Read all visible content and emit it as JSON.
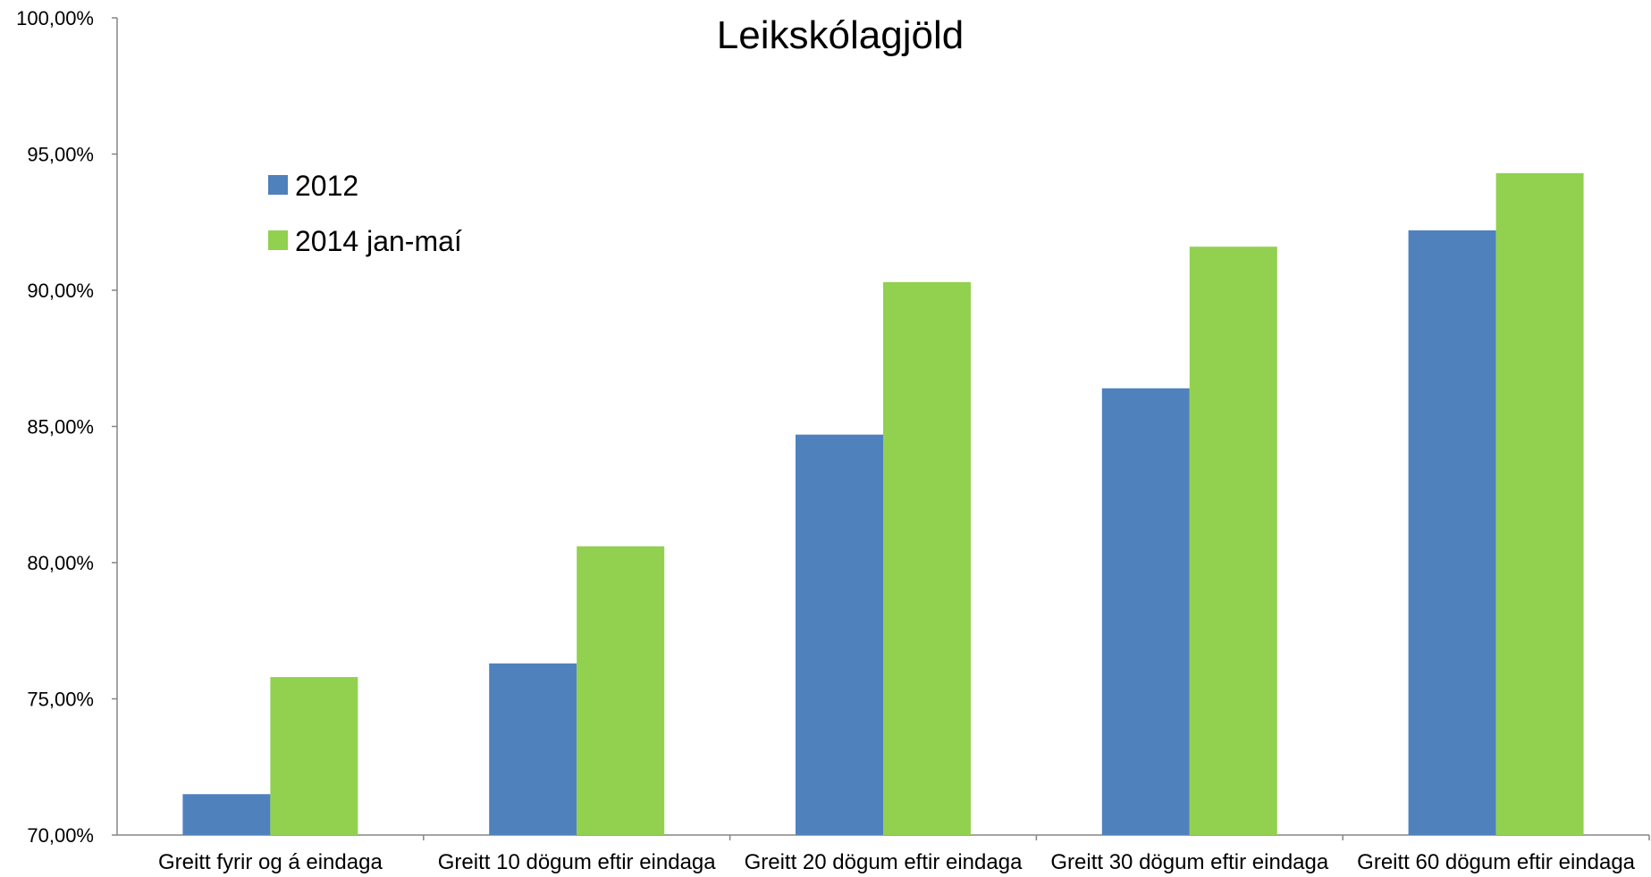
{
  "chart_data": {
    "type": "bar",
    "title": "Leikskólagjöld",
    "xlabel": "",
    "ylabel": "",
    "categories": [
      "Greitt fyrir og á eindaga",
      "Greitt 10 dögum eftir eindaga",
      "Greitt 20 dögum eftir eindaga",
      "Greitt 30 dögum eftir eindaga",
      "Greitt 60 dögum eftir eindaga"
    ],
    "series": [
      {
        "name": "2012",
        "color": "#4F81BD",
        "values": [
          71.5,
          76.3,
          84.7,
          86.4,
          92.2
        ]
      },
      {
        "name": "2014 jan-maí",
        "color": "#92D050",
        "values": [
          75.8,
          80.6,
          90.3,
          91.6,
          94.3
        ]
      }
    ],
    "ylim": [
      70,
      100
    ],
    "yticks": [
      70,
      75,
      80,
      85,
      90,
      95,
      100
    ],
    "ytick_labels": [
      "70,00%",
      "75,00%",
      "80,00%",
      "85,00%",
      "90,00%",
      "95,00%",
      "100,00%"
    ],
    "grid": false,
    "legend_position": "top-left"
  }
}
